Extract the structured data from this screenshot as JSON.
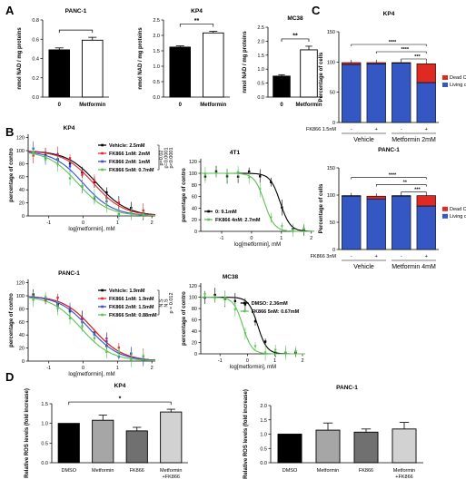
{
  "panel_letters": [
    "A",
    "B",
    "C",
    "D"
  ],
  "chart_data": [
    {
      "id": "A1",
      "type": "bar",
      "title": "PANC-1",
      "ylabel": "nmol NAD / mg proteins",
      "categories": [
        "0",
        "Metformin"
      ],
      "values": [
        0.49,
        0.59
      ],
      "errors": [
        0.02,
        0.03
      ],
      "fills": [
        "#000000",
        "#ffffff"
      ],
      "ylim": [
        0,
        0.8
      ],
      "yticks": [
        "0.0",
        "0.2",
        "0.4",
        "0.6",
        "0.8"
      ],
      "significance": [
        {
          "pair": [
            0,
            1
          ],
          "label": ""
        }
      ]
    },
    {
      "id": "A2",
      "type": "bar",
      "title": "KP4",
      "ylabel": "nmol NAD / mg proteins",
      "categories": [
        "0",
        "Metformin"
      ],
      "values": [
        1.62,
        2.08
      ],
      "errors": [
        0.04,
        0.05
      ],
      "fills": [
        "#000000",
        "#ffffff"
      ],
      "ylim": [
        0,
        2.5
      ],
      "yticks": [
        "0.0",
        "0.5",
        "1.0",
        "1.5",
        "2.0",
        "2.5"
      ],
      "significance": [
        {
          "pair": [
            0,
            1
          ],
          "label": "**"
        }
      ]
    },
    {
      "id": "A3",
      "type": "bar",
      "title": "MC38",
      "ylabel": "nmol NAD / mg proteins",
      "categories": [
        "0",
        "Metformin"
      ],
      "values": [
        0.75,
        1.69
      ],
      "errors": [
        0.05,
        0.13
      ],
      "fills": [
        "#000000",
        "#ffffff"
      ],
      "ylim": [
        0,
        2.5
      ],
      "yticks": [
        "0.0",
        "0.5",
        "1.0",
        "1.5",
        "2.0",
        "2.5"
      ],
      "significance": [
        {
          "pair": [
            0,
            1
          ],
          "label": "**"
        }
      ]
    },
    {
      "id": "B1",
      "type": "line",
      "title": "KP4",
      "xlabel": "log[metformin], mM",
      "ylabel": "percentage of contro",
      "xlim": [
        -1.6,
        2.1
      ],
      "ylim": [
        0,
        125
      ],
      "xticks": [
        "-1",
        "0",
        "1",
        "2"
      ],
      "yticks": [
        "0",
        "20",
        "40",
        "60",
        "80",
        "100",
        "120"
      ],
      "series": [
        {
          "name": "Vehicle: 2.5mM",
          "color": "#000000",
          "ic50": 2.5
        },
        {
          "name": "FK866 1nM: 2mM",
          "color": "#e8262a",
          "ic50": 2.0
        },
        {
          "name": "FK866 2nM: 1mM",
          "color": "#2f4fd6",
          "ic50": 1.0
        },
        {
          "name": "FK866 5nM: 0.7mM",
          "color": "#5cc254",
          "ic50": 0.7
        }
      ],
      "pvalues": [
        "p=0.02",
        "p=0.0001",
        "p<0.0001"
      ]
    },
    {
      "id": "B2",
      "type": "line",
      "title": "4T1",
      "xlabel": "log[metformin], mM",
      "ylabel": "percentage of contro",
      "xlim": [
        -1.7,
        2.1
      ],
      "ylim": [
        0,
        125
      ],
      "xticks": [
        "-1",
        "0",
        "1",
        "2"
      ],
      "yticks": [
        "0",
        "20",
        "40",
        "60",
        "80",
        "100",
        "120"
      ],
      "series": [
        {
          "name": "0: 9.1mM",
          "color": "#000000",
          "ic50": 9.1
        },
        {
          "name": "FK866 4nM: 2.7mM",
          "color": "#5cc254",
          "ic50": 2.7
        }
      ]
    },
    {
      "id": "B3",
      "type": "line",
      "title": "PANC-1",
      "xlabel": "log[metformin], mM",
      "ylabel": "percentage of contro",
      "xlim": [
        -1.6,
        2.1
      ],
      "ylim": [
        0,
        125
      ],
      "xticks": [
        "-1",
        "0",
        "1",
        "2"
      ],
      "yticks": [
        "0",
        "20",
        "40",
        "60",
        "80",
        "100",
        "120"
      ],
      "series": [
        {
          "name": "Vehicle: 1.9mM",
          "color": "#000000",
          "ic50": 1.9
        },
        {
          "name": "FK866 1nM: 1.9mM",
          "color": "#e8262a",
          "ic50": 1.9
        },
        {
          "name": "FK866 2nM: 1.5mM",
          "color": "#2f4fd6",
          "ic50": 1.5
        },
        {
          "name": "FK866 5nM: 0.88mM",
          "color": "#5cc254",
          "ic50": 0.88
        }
      ],
      "pvalues": [
        "N.S",
        "N.S",
        "p = 0.012"
      ]
    },
    {
      "id": "B4",
      "type": "line",
      "title": "MC38",
      "xlabel": "log[metformin], mM",
      "ylabel": "percentage of contro",
      "xlim": [
        -1.7,
        2.1
      ],
      "ylim": [
        0,
        125
      ],
      "xticks": [
        "-1",
        "0",
        "1",
        "2"
      ],
      "yticks": [
        "0",
        "20",
        "40",
        "60",
        "80",
        "100",
        "120"
      ],
      "series": [
        {
          "name": "DMSO: 2.36mM",
          "color": "#000000",
          "ic50": 2.36
        },
        {
          "name": "FK866 5nM: 0.67mM",
          "color": "#5cc254",
          "ic50": 0.67
        }
      ]
    },
    {
      "id": "C1",
      "type": "bar",
      "stacked": true,
      "title": "KP4",
      "ylabel": "Percentage of cells",
      "ylim": [
        0,
        150
      ],
      "yticks": [
        "0",
        "50",
        "100",
        "150"
      ],
      "x_row_label": "FK866 1.5nM",
      "x_marks": [
        "-",
        "+",
        "-",
        "+"
      ],
      "groups": [
        "Vehicle",
        "Metformin 2mM"
      ],
      "series": [
        {
          "name": "Living cells",
          "color": "#3557c4",
          "values": [
            96,
            97,
            98,
            66
          ]
        },
        {
          "name": "Dead Cells",
          "color": "#de2a20",
          "values": [
            3,
            2,
            1,
            31
          ]
        }
      ],
      "significance": [
        "****",
        "****",
        "***"
      ]
    },
    {
      "id": "C2",
      "type": "bar",
      "stacked": true,
      "title": "PANC-1",
      "ylabel": "Percentage of cells",
      "ylim": [
        0,
        150
      ],
      "yticks": [
        "0",
        "50",
        "100",
        "150"
      ],
      "x_row_label": "FK866 3nM",
      "x_marks": [
        "-",
        "+",
        "-",
        "+"
      ],
      "groups": [
        "Vehicle",
        "Metformin 4mM"
      ],
      "series": [
        {
          "name": "Living cells",
          "color": "#3557c4",
          "values": [
            98,
            93,
            98,
            80
          ]
        },
        {
          "name": "Dead Cells",
          "color": "#de2a20",
          "values": [
            1,
            5,
            1,
            19
          ]
        }
      ],
      "significance": [
        "****",
        "**",
        "***"
      ]
    },
    {
      "id": "D1",
      "type": "bar",
      "title": "KP4",
      "ylabel": "Relative ROS levels (fold increase)",
      "categories": [
        "DMSO",
        "Metformin",
        "FK866",
        "Metformin +FK866"
      ],
      "values": [
        1.0,
        1.08,
        0.81,
        1.29
      ],
      "errors": [
        0.0,
        0.13,
        0.09,
        0.07
      ],
      "fills": [
        "#000000",
        "#a6a6a6",
        "#707070",
        "#d2d2d2"
      ],
      "ylim": [
        0,
        1.5
      ],
      "yticks": [
        "0.0",
        "0.5",
        "1.0",
        "1.5"
      ],
      "significance": [
        {
          "pair": [
            0,
            3
          ],
          "label": "*"
        }
      ]
    },
    {
      "id": "D2",
      "type": "bar",
      "title": "PANC-1",
      "ylabel": "Relative ROS levels (fold increase)",
      "categories": [
        "DMSO",
        "Metformin",
        "FK866",
        "Metformin +FK866"
      ],
      "values": [
        1.0,
        1.14,
        1.07,
        1.18
      ],
      "errors": [
        0.0,
        0.25,
        0.11,
        0.23
      ],
      "fills": [
        "#000000",
        "#a6a6a6",
        "#707070",
        "#d2d2d2"
      ],
      "ylim": [
        0,
        2.0
      ],
      "yticks": [
        "0.0",
        "0.5",
        "1.0",
        "1.5",
        "2.0"
      ],
      "significance": []
    }
  ]
}
